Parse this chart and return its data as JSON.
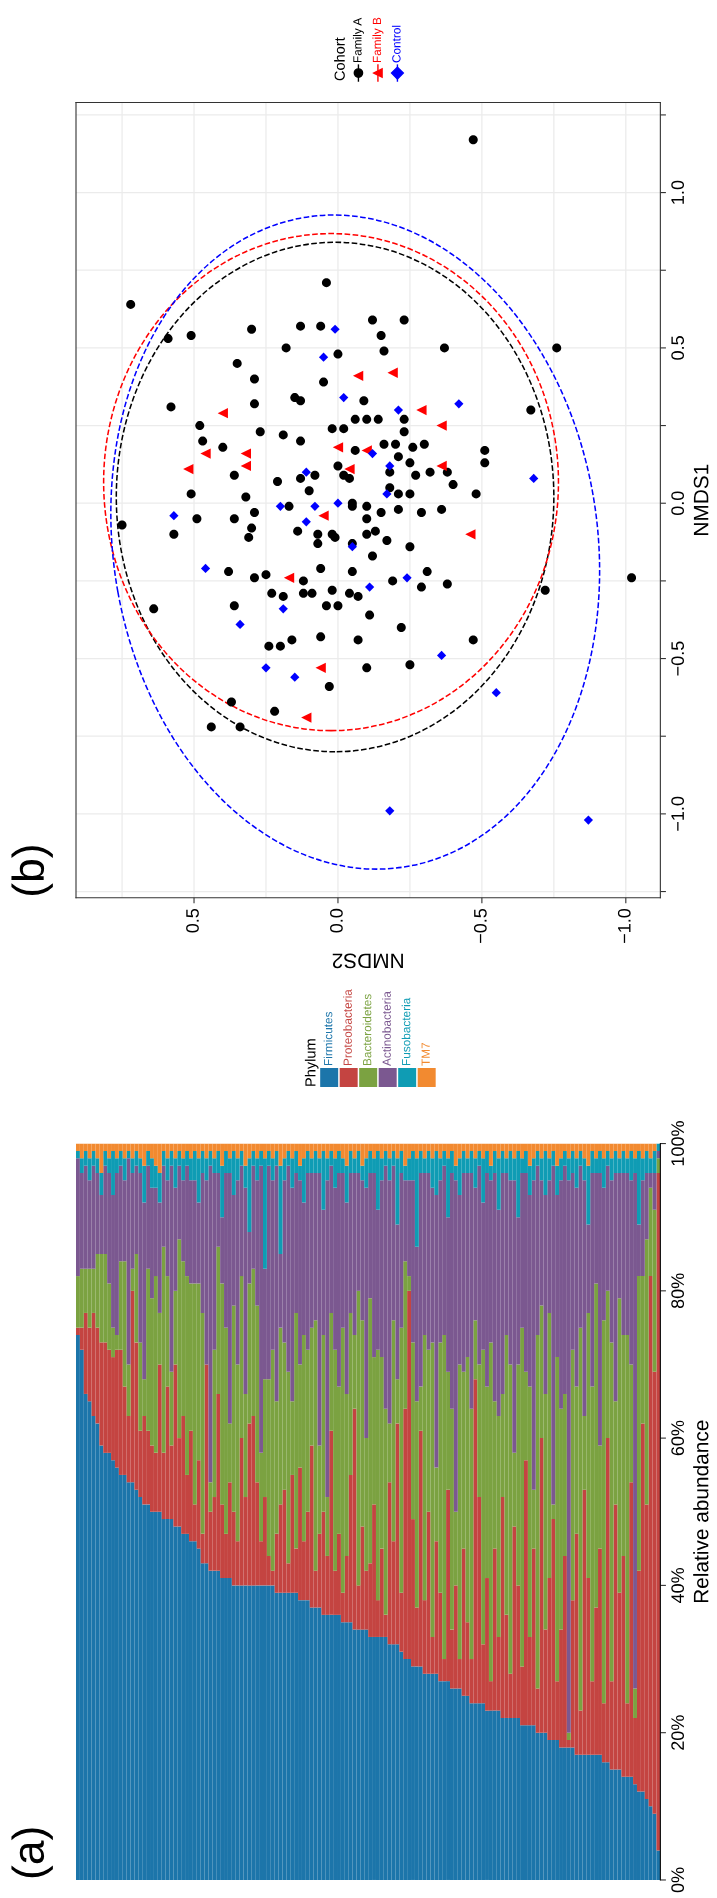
{
  "chart_data": [
    {
      "type": "bar",
      "title": "(a)",
      "ylabel": "Relative abundance",
      "stacked": true,
      "legend": "top",
      "legend_title": "Phylum",
      "tick_labels": "y",
      "grid": false,
      "categories": [
        null,
        null,
        null,
        null,
        null,
        null,
        null,
        null,
        null,
        null,
        null,
        null,
        null,
        null,
        null,
        null,
        null,
        null,
        null,
        null,
        null,
        null,
        null,
        null,
        null,
        null,
        null,
        null,
        null,
        null,
        null,
        null,
        null,
        null,
        null,
        null,
        null,
        null,
        null,
        null,
        null,
        null,
        null,
        null,
        null,
        null,
        null,
        null,
        null,
        null,
        null,
        null,
        null,
        null,
        null,
        null,
        null,
        null,
        null,
        null,
        null,
        null,
        null,
        null,
        null,
        null,
        null,
        null,
        null,
        null,
        null,
        null,
        null,
        null,
        null,
        null,
        null,
        null,
        null,
        null,
        null,
        null,
        null,
        null,
        null,
        null,
        null,
        null,
        null,
        null,
        null,
        null,
        null,
        null,
        null,
        null,
        null,
        null,
        null,
        null,
        null,
        null,
        null,
        null,
        null,
        null,
        null,
        null,
        null,
        null,
        null,
        null,
        null,
        null,
        null,
        null,
        null,
        null,
        null,
        null,
        null,
        null,
        null,
        null,
        null,
        null,
        null,
        null,
        null,
        null,
        null,
        null,
        null,
        null,
        null,
        null,
        null,
        null,
        null,
        null,
        null,
        null,
        null,
        null,
        null,
        null,
        null,
        null,
        null,
        null
      ],
      "ylim": [
        0,
        100
      ],
      "yticks": [
        {
          "value": 0,
          "label": "0%"
        },
        {
          "value": 20,
          "label": "20%"
        },
        {
          "value": 40,
          "label": "40%"
        },
        {
          "value": 60,
          "label": "60%"
        },
        {
          "value": 80,
          "label": "80%"
        },
        {
          "value": 100,
          "label": "100%"
        }
      ],
      "series": [
        {
          "name": "Firmicutes",
          "color": "#1c75aa",
          "values": [
            74,
            72,
            66,
            65,
            63,
            62,
            59,
            58,
            58,
            57,
            56,
            55,
            55,
            54,
            54,
            53,
            52,
            51,
            51,
            50,
            50,
            50,
            49,
            49,
            49,
            48,
            48,
            47,
            47,
            46,
            46,
            45,
            43,
            43,
            42,
            42,
            42,
            41,
            41,
            41,
            40,
            40,
            40,
            40,
            40,
            40,
            40,
            40,
            40,
            40,
            40,
            39,
            39,
            39,
            39,
            39,
            39,
            38,
            38,
            38,
            37,
            37,
            37,
            36,
            36,
            36,
            36,
            36,
            35,
            35,
            35,
            34,
            34,
            34,
            34,
            33,
            33,
            33,
            33,
            33,
            32,
            32,
            32,
            31,
            30,
            30,
            29,
            29,
            29,
            28,
            28,
            28,
            28,
            27,
            27,
            27,
            26,
            26,
            26,
            25,
            25,
            24,
            24,
            24,
            24,
            23,
            23,
            23,
            23,
            22,
            22,
            22,
            22,
            22,
            21,
            21,
            21,
            21,
            20,
            20,
            20,
            19,
            19,
            19,
            18,
            18,
            18,
            18,
            17,
            17,
            17,
            17,
            17,
            17,
            17,
            16,
            16,
            15,
            15,
            15,
            14,
            14,
            14,
            13,
            12,
            12,
            11,
            10,
            9,
            4
          ]
        },
        {
          "name": "Proteobacteria",
          "color": "#c44441",
          "values": [
            1,
            3,
            11,
            10,
            14,
            13,
            14,
            15,
            14,
            14,
            16,
            17,
            12,
            9,
            26,
            20,
            9,
            12,
            10,
            9,
            8,
            20,
            9,
            18,
            10,
            22,
            12,
            16,
            8,
            15,
            5,
            12,
            4,
            27,
            8,
            10,
            24,
            10,
            6,
            13,
            10,
            6,
            20,
            12,
            22,
            23,
            14,
            6,
            12,
            4,
            2,
            8,
            12,
            14,
            4,
            16,
            6,
            18,
            8,
            12,
            22,
            5,
            10,
            14,
            8,
            25,
            6,
            11,
            4,
            9,
            20,
            30,
            6,
            14,
            8,
            10,
            18,
            5,
            12,
            3,
            22,
            14,
            30,
            8,
            34,
            50,
            20,
            8,
            32,
            10,
            22,
            5,
            18,
            12,
            3,
            26,
            8,
            14,
            4,
            20,
            10,
            6,
            44,
            28,
            8,
            18,
            4,
            22,
            10,
            30,
            14,
            6,
            26,
            18,
            8,
            36,
            12,
            24,
            6,
            40,
            14,
            22,
            30,
            8,
            16,
            26,
            1,
            20,
            30,
            6,
            36,
            24,
            10,
            20,
            28,
            8,
            44,
            12,
            36,
            24,
            30,
            10,
            40,
            9,
            30,
            50,
            40,
            72,
            60,
            92
          ]
        },
        {
          "name": "Bacteroidetes",
          "color": "#7ba241",
          "values": [
            7,
            8,
            6,
            8,
            6,
            10,
            12,
            12,
            9,
            4,
            2,
            12,
            17,
            7,
            3,
            12,
            12,
            5,
            22,
            20,
            24,
            7,
            28,
            15,
            10,
            10,
            27,
            21,
            27,
            20,
            30,
            24,
            30,
            0,
            4,
            20,
            20,
            30,
            28,
            8,
            28,
            24,
            22,
            14,
            19,
            20,
            24,
            12,
            16,
            24,
            30,
            18,
            24,
            20,
            26,
            10,
            32,
            14,
            28,
            22,
            16,
            34,
            12,
            24,
            8,
            16,
            30,
            20,
            36,
            22,
            22,
            10,
            40,
            28,
            18,
            36,
            20,
            34,
            26,
            28,
            8,
            30,
            6,
            36,
            20,
            2,
            24,
            28,
            6,
            36,
            22,
            40,
            10,
            34,
            44,
            16,
            30,
            10,
            40,
            24,
            36,
            34,
            8,
            18,
            40,
            26,
            46,
            20,
            30,
            14,
            38,
            42,
            10,
            30,
            46,
            12,
            34,
            8,
            48,
            18,
            32,
            36,
            2,
            44,
            30,
            22,
            1,
            34,
            20,
            52,
            10,
            36,
            40,
            44,
            14,
            52,
            20,
            46,
            14,
            40,
            30,
            50,
            16,
            4,
            40,
            20,
            36,
            12,
            22,
            2
          ]
        },
        {
          "name": "Actinobacteria",
          "color": "#7b5890",
          "values": [
            16,
            13,
            14,
            12,
            14,
            11,
            8,
            12,
            15,
            18,
            22,
            13,
            11,
            28,
            13,
            12,
            23,
            24,
            14,
            15,
            12,
            15,
            11,
            13,
            28,
            14,
            10,
            11,
            15,
            14,
            14,
            11,
            19,
            25,
            43,
            24,
            10,
            9,
            21,
            34,
            15,
            25,
            15,
            28,
            7,
            14,
            17,
            39,
            15,
            29,
            23,
            32,
            10,
            22,
            28,
            29,
            19,
            25,
            18,
            24,
            21,
            20,
            37,
            17,
            43,
            20,
            22,
            29,
            21,
            26,
            19,
            22,
            16,
            19,
            34,
            17,
            25,
            19,
            24,
            33,
            33,
            21,
            21,
            21,
            11,
            13,
            22,
            21,
            29,
            22,
            24,
            21,
            37,
            22,
            23,
            21,
            32,
            45,
            23,
            27,
            25,
            32,
            18,
            27,
            20,
            29,
            22,
            31,
            28,
            30,
            22,
            25,
            37,
            20,
            21,
            27,
            26,
            42,
            23,
            17,
            27,
            18,
            46,
            22,
            31,
            31,
            75,
            24,
            27,
            22,
            32,
            12,
            29,
            15,
            37,
            18,
            17,
            22,
            31,
            17,
            22,
            22,
            25,
            70,
            7,
            13,
            9,
            2,
            5,
            1
          ]
        },
        {
          "name": "Fusobacteria",
          "color": "#0f9cb4",
          "values": [
            1,
            2,
            2,
            3,
            2,
            2,
            3,
            2,
            2,
            6,
            2,
            2,
            3,
            1,
            2,
            2,
            2,
            5,
            2,
            4,
            3,
            4,
            2,
            3,
            2,
            4,
            2,
            3,
            2,
            3,
            4,
            6,
            3,
            3,
            2,
            2,
            3,
            7,
            3,
            2,
            6,
            3,
            2,
            3,
            10,
            2,
            3,
            2,
            15,
            2,
            3,
            2,
            12,
            3,
            2,
            4,
            3,
            2,
            6,
            3,
            2,
            3,
            2,
            8,
            3,
            2,
            4,
            3,
            2,
            5,
            3,
            2,
            3,
            2,
            4,
            3,
            2,
            8,
            3,
            2,
            3,
            2,
            9,
            3,
            2,
            3,
            4,
            12,
            3,
            2,
            3,
            4,
            6,
            3,
            2,
            8,
            3,
            2,
            5,
            3,
            2,
            3,
            4,
            2,
            6,
            3,
            2,
            3,
            7,
            3,
            2,
            4,
            3,
            9,
            2,
            3,
            4,
            3,
            2,
            3,
            6,
            3,
            2,
            4,
            3,
            2,
            3,
            3,
            4,
            2,
            3,
            8,
            3,
            2,
            3,
            4,
            2,
            3,
            3,
            2,
            3,
            2,
            4,
            2,
            10,
            3,
            3,
            2,
            3,
            1
          ]
        },
        {
          "name": "TM7",
          "color": "#f28a30",
          "values": [
            1,
            2,
            1,
            2,
            1,
            2,
            4,
            1,
            2,
            1,
            2,
            1,
            2,
            1,
            2,
            1,
            2,
            3,
            1,
            2,
            3,
            4,
            1,
            2,
            1,
            2,
            1,
            2,
            1,
            2,
            1,
            2,
            1,
            2,
            1,
            2,
            1,
            3,
            1,
            2,
            1,
            2,
            1,
            3,
            2,
            1,
            2,
            1,
            2,
            1,
            2,
            1,
            3,
            2,
            1,
            2,
            1,
            3,
            2,
            1,
            2,
            1,
            2,
            1,
            2,
            1,
            2,
            1,
            2,
            3,
            1,
            2,
            1,
            3,
            2,
            1,
            2,
            1,
            2,
            1,
            2,
            1,
            2,
            1,
            3,
            2,
            1,
            2,
            1,
            2,
            1,
            2,
            1,
            2,
            1,
            2,
            1,
            3,
            2,
            1,
            2,
            1,
            2,
            1,
            2,
            1,
            3,
            1,
            2,
            1,
            2,
            1,
            2,
            1,
            2,
            1,
            3,
            2,
            1,
            2,
            1,
            2,
            1,
            3,
            2,
            1,
            2,
            1,
            2,
            1,
            2,
            3,
            1,
            2,
            1,
            2,
            1,
            2,
            1,
            2,
            1,
            2,
            1,
            2,
            1,
            2,
            1,
            2,
            1,
            0
          ]
        }
      ]
    },
    {
      "type": "scatter",
      "title": "(b)",
      "xlabel": "NMDS2",
      "ylabel": "NMDS1",
      "legend": "top",
      "legend_title": "Cohort",
      "grid": true,
      "xlim": [
        0.91,
        -1.12
      ],
      "ylim": [
        -1.27,
        1.29
      ],
      "xticks": [
        {
          "value": 0.75,
          "label": null
        },
        0.5,
        {
          "value": 0.25,
          "label": null
        },
        {
          "value": 0.0,
          "label": "0.0"
        },
        {
          "value": -0.25,
          "label": null
        },
        {
          "value": -0.5,
          "label": "−0.5"
        },
        {
          "value": -0.75,
          "label": null
        },
        {
          "value": -1.0,
          "label": "−1.0"
        }
      ],
      "yticks": [
        {
          "value": -1.25,
          "label": null
        },
        {
          "value": -1.0,
          "label": "−1.0"
        },
        {
          "value": -0.75,
          "label": null
        },
        {
          "value": -0.5,
          "label": "−0.5"
        },
        {
          "value": -0.25,
          "label": null
        },
        {
          "value": 0.0,
          "label": "0.0"
        },
        {
          "value": 0.25,
          "label": null
        },
        0.5,
        {
          "value": 0.75,
          "label": null
        },
        {
          "value": 1.0,
          "label": "1.0"
        },
        {
          "value": 1.25,
          "label": null
        }
      ],
      "series": [
        {
          "name": "Family A",
          "color": "#000000",
          "marker": "circle",
          "x": [
            -0.47,
            0.04,
            0.72,
            0.3,
            0.13,
            0.06,
            -0.12,
            -0.23,
            0.59,
            0.51,
            -0.15,
            0.18,
            0.0,
            -0.16,
            -0.37,
            -0.76,
            0.35,
            0.05,
            0.29,
            0.58,
            0.29,
            0.15,
            0.13,
            -0.09,
            -0.67,
            0.48,
            -0.06,
            -0.1,
            -0.14,
            -0.23,
            0.02,
            -0.02,
            0.27,
            0.19,
            -0.23,
            0.47,
            0.4,
            0.13,
            -0.16,
            -0.2,
            -0.3,
            -0.06,
            -0.26,
            -0.21,
            0.0,
            -0.25,
            -0.51,
            -0.51,
            0.36,
            -0.02,
            -0.04,
            -0.27,
            -0.32,
            -0.38,
            0.08,
            0.13,
            0.21,
            -0.18,
            -0.4,
            0.51,
            0.32,
            0.1,
            -0.18,
            -0.21,
            -0.25,
            -0.48,
            0.75,
            0.49,
            0.36,
            0.29,
            0.17,
            -0.05,
            -0.05,
            -0.1,
            -0.15,
            -0.21,
            -0.29,
            -0.36,
            0.57,
            0.3,
            0.31,
            -0.1,
            0.14,
            0.07,
            0.02,
            0.01,
            -0.1,
            -0.13,
            -0.17,
            0.07,
            -0.05,
            -0.25,
            -0.12,
            0.06,
            -0.31,
            0.38,
            0.25,
            0.29,
            0.12,
            -0.05,
            -0.19,
            -0.29,
            -0.38,
            -0.72,
            -1.02,
            0.23,
            0.19,
            0.12,
            0.09,
            0.02,
            -0.04,
            -0.07,
            0.04,
            0.0,
            -0.11,
            0.64,
            0.36,
            -0.22,
            0.24,
            0.2,
            0.16,
            0.06,
            -0.07,
            -0.47,
            -0.1,
            -0.25,
            0.03,
            0.37,
            0.22,
            0.44,
            0.34
          ],
          "values": [
            1.17,
            0.71,
            0.64,
            0.56,
            0.57,
            0.57,
            0.59,
            0.59,
            0.53,
            0.54,
            0.54,
            0.5,
            0.48,
            0.49,
            0.5,
            0.5,
            0.45,
            0.39,
            0.4,
            0.31,
            0.32,
            0.34,
            0.33,
            0.33,
            0.3,
            0.25,
            0.27,
            0.27,
            0.27,
            0.27,
            0.24,
            0.24,
            0.23,
            0.22,
            0.23,
            0.2,
            0.18,
            0.2,
            0.19,
            0.19,
            0.19,
            0.17,
            0.18,
            0.15,
            0.12,
            0.13,
            0.17,
            0.13,
            0.09,
            0.09,
            0.08,
            0.09,
            0.1,
            0.1,
            0.09,
            0.08,
            0.07,
            0.1,
            0.06,
            0.03,
            0.02,
            0.04,
            0.05,
            0.03,
            0.03,
            0.03,
            -0.07,
            -0.05,
            -0.05,
            -0.03,
            -0.01,
            0.0,
            -0.01,
            -0.01,
            -0.03,
            -0.02,
            -0.03,
            -0.02,
            -0.1,
            -0.08,
            -0.11,
            -0.05,
            -0.09,
            -0.1,
            -0.1,
            -0.11,
            -0.1,
            -0.09,
            -0.12,
            -0.13,
            -0.13,
            -0.14,
            -0.17,
            -0.21,
            -0.22,
            -0.22,
            -0.23,
            -0.24,
            -0.25,
            -0.22,
            -0.25,
            -0.27,
            -0.26,
            -0.28,
            -0.24,
            -0.29,
            -0.3,
            -0.29,
            -0.29,
            -0.28,
            -0.29,
            -0.3,
            -0.33,
            -0.33,
            -0.36,
            -0.34,
            -0.33,
            -0.4,
            -0.46,
            -0.46,
            -0.44,
            -0.43,
            -0.44,
            -0.44,
            -0.53,
            -0.52,
            -0.59,
            -0.64,
            -0.67,
            -0.72,
            -0.72
          ]
        },
        {
          "name": "Family B",
          "color": "#ff0000",
          "marker": "triangle",
          "x": [
            -0.07,
            -0.19,
            0.4,
            -0.29,
            -0.36,
            0.46,
            0.32,
            0.32,
            0.52,
            0.0,
            -0.1,
            -0.04,
            -0.36,
            0.05,
            -0.46,
            0.17,
            0.06,
            0.11
          ],
          "values": [
            0.41,
            0.42,
            0.29,
            0.3,
            0.25,
            0.16,
            0.16,
            0.12,
            0.11,
            0.18,
            0.17,
            0.11,
            0.12,
            -0.04,
            -0.1,
            -0.24,
            -0.53,
            -0.69
          ]
        },
        {
          "name": "Control",
          "color": "#0000ff",
          "marker": "diamond",
          "x": [
            0.01,
            0.05,
            -0.02,
            -0.21,
            -0.42,
            -0.12,
            -0.18,
            0.11,
            -0.17,
            -0.68,
            0.57,
            0.2,
            0.08,
            0.0,
            0.11,
            -0.05,
            0.46,
            -0.24,
            -0.11,
            0.19,
            0.34,
            0.25,
            0.15,
            -0.36,
            -0.55,
            -0.18,
            -0.87
          ],
          "values": [
            0.56,
            0.47,
            0.34,
            0.3,
            0.32,
            0.16,
            0.12,
            0.1,
            0.03,
            0.08,
            -0.04,
            -0.01,
            -0.01,
            0.0,
            -0.06,
            -0.14,
            -0.21,
            -0.24,
            -0.27,
            -0.34,
            -0.39,
            -0.53,
            -0.56,
            -0.49,
            -0.61,
            -0.99,
            -1.02
          ]
        }
      ]
    }
  ]
}
